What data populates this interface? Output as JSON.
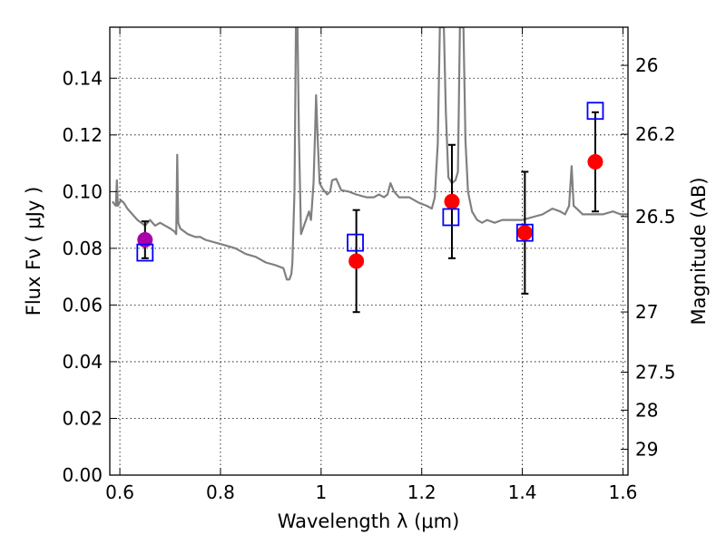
{
  "chart_data": {
    "type": "scatter",
    "xlabel": "Wavelength  λ (μm)",
    "ylabel": "Flux  Fν  ( μJy )",
    "ylabel_right": "Magnitude (AB)",
    "xlim": [
      0.58,
      1.61
    ],
    "ylim": [
      0.0,
      0.158
    ],
    "grid": true,
    "x_ticks": [
      {
        "value": 0.6,
        "label": "0.6"
      },
      {
        "value": 0.8,
        "label": "0.8"
      },
      {
        "value": 1.0,
        "label": "1"
      },
      {
        "value": 1.2,
        "label": "1.2"
      },
      {
        "value": 1.4,
        "label": "1.4"
      },
      {
        "value": 1.6,
        "label": "1.6"
      }
    ],
    "y_ticks": [
      {
        "value": 0.0,
        "label": "0.00"
      },
      {
        "value": 0.02,
        "label": "0.02"
      },
      {
        "value": 0.04,
        "label": "0.04"
      },
      {
        "value": 0.06,
        "label": "0.06"
      },
      {
        "value": 0.08,
        "label": "0.08"
      },
      {
        "value": 0.1,
        "label": "0.10"
      },
      {
        "value": 0.12,
        "label": "0.12"
      },
      {
        "value": 0.14,
        "label": "0.14"
      }
    ],
    "y_right_ticks": [
      {
        "value": 26,
        "label": "26"
      },
      {
        "value": 26.2,
        "label": "26.2"
      },
      {
        "value": 26.5,
        "label": "26.5"
      },
      {
        "value": 27,
        "label": "27"
      },
      {
        "value": 27.5,
        "label": "27.5"
      },
      {
        "value": 28,
        "label": "28"
      },
      {
        "value": 29,
        "label": "29"
      }
    ],
    "model_spectrum": {
      "color": "#808080",
      "points": [
        [
          0.585,
          0.0965
        ],
        [
          0.592,
          0.095
        ],
        [
          0.594,
          0.104
        ],
        [
          0.596,
          0.095
        ],
        [
          0.602,
          0.097
        ],
        [
          0.608,
          0.096
        ],
        [
          0.615,
          0.094
        ],
        [
          0.625,
          0.092
        ],
        [
          0.635,
          0.09
        ],
        [
          0.65,
          0.088
        ],
        [
          0.66,
          0.09
        ],
        [
          0.67,
          0.088
        ],
        [
          0.68,
          0.089
        ],
        [
          0.69,
          0.088
        ],
        [
          0.7,
          0.087
        ],
        [
          0.708,
          0.086
        ],
        [
          0.712,
          0.085
        ],
        [
          0.714,
          0.113
        ],
        [
          0.716,
          0.089
        ],
        [
          0.72,
          0.087
        ],
        [
          0.735,
          0.085
        ],
        [
          0.75,
          0.084
        ],
        [
          0.76,
          0.084
        ],
        [
          0.77,
          0.083
        ],
        [
          0.79,
          0.082
        ],
        [
          0.81,
          0.081
        ],
        [
          0.83,
          0.08
        ],
        [
          0.85,
          0.078
        ],
        [
          0.87,
          0.077
        ],
        [
          0.89,
          0.075
        ],
        [
          0.91,
          0.074
        ],
        [
          0.925,
          0.073
        ],
        [
          0.932,
          0.069
        ],
        [
          0.937,
          0.069
        ],
        [
          0.941,
          0.071
        ],
        [
          0.943,
          0.075
        ],
        [
          0.947,
          0.1
        ],
        [
          0.95,
          0.158
        ],
        [
          0.953,
          0.158
        ],
        [
          0.956,
          0.12
        ],
        [
          0.96,
          0.085
        ],
        [
          0.966,
          0.088
        ],
        [
          0.972,
          0.091
        ],
        [
          0.976,
          0.093
        ],
        [
          0.98,
          0.09
        ],
        [
          0.985,
          0.103
        ],
        [
          0.988,
          0.121
        ],
        [
          0.99,
          0.134
        ],
        [
          0.993,
          0.119
        ],
        [
          0.997,
          0.103
        ],
        [
          1.003,
          0.101
        ],
        [
          1.012,
          0.099
        ],
        [
          1.018,
          0.1
        ],
        [
          1.022,
          0.104
        ],
        [
          1.03,
          0.1045
        ],
        [
          1.04,
          0.1005
        ],
        [
          1.055,
          0.1
        ],
        [
          1.07,
          0.099
        ],
        [
          1.09,
          0.098
        ],
        [
          1.105,
          0.098
        ],
        [
          1.115,
          0.099
        ],
        [
          1.125,
          0.098
        ],
        [
          1.132,
          0.099
        ],
        [
          1.138,
          0.103
        ],
        [
          1.145,
          0.1
        ],
        [
          1.155,
          0.098
        ],
        [
          1.175,
          0.098
        ],
        [
          1.195,
          0.096
        ],
        [
          1.21,
          0.095
        ],
        [
          1.22,
          0.094
        ],
        [
          1.226,
          0.098
        ],
        [
          1.232,
          0.117
        ],
        [
          1.236,
          0.158
        ],
        [
          1.244,
          0.158
        ],
        [
          1.248,
          0.128
        ],
        [
          1.253,
          0.105
        ],
        [
          1.26,
          0.103
        ],
        [
          1.267,
          0.104
        ],
        [
          1.272,
          0.107
        ],
        [
          1.276,
          0.158
        ],
        [
          1.283,
          0.158
        ],
        [
          1.287,
          0.118
        ],
        [
          1.292,
          0.1
        ],
        [
          1.3,
          0.093
        ],
        [
          1.31,
          0.09
        ],
        [
          1.32,
          0.089
        ],
        [
          1.33,
          0.09
        ],
        [
          1.345,
          0.089
        ],
        [
          1.36,
          0.09
        ],
        [
          1.38,
          0.09
        ],
        [
          1.4,
          0.09
        ],
        [
          1.42,
          0.091
        ],
        [
          1.44,
          0.092
        ],
        [
          1.46,
          0.094
        ],
        [
          1.475,
          0.093
        ],
        [
          1.485,
          0.092
        ],
        [
          1.493,
          0.095
        ],
        [
          1.498,
          0.109
        ],
        [
          1.502,
          0.095
        ],
        [
          1.508,
          0.094
        ],
        [
          1.52,
          0.092
        ],
        [
          1.54,
          0.092
        ],
        [
          1.56,
          0.092
        ],
        [
          1.58,
          0.093
        ],
        [
          1.595,
          0.092
        ],
        [
          1.61,
          0.092
        ]
      ]
    },
    "series": [
      {
        "marker": "circle",
        "color": "#ff0000",
        "points": [
          {
            "x": 1.07,
            "y": 0.0755,
            "yerr_low": 0.0575,
            "yerr_high": 0.0935
          },
          {
            "x": 1.26,
            "y": 0.0965,
            "yerr_low": 0.0765,
            "yerr_high": 0.1165
          },
          {
            "x": 1.405,
            "y": 0.0855,
            "yerr_low": 0.064,
            "yerr_high": 0.107
          },
          {
            "x": 1.545,
            "y": 0.1105,
            "yerr_low": 0.093,
            "yerr_high": 0.128
          }
        ]
      },
      {
        "marker": "circle",
        "color": "#aa00aa",
        "points": [
          {
            "x": 0.65,
            "y": 0.083,
            "yerr_low": 0.0765,
            "yerr_high": 0.0895
          }
        ]
      },
      {
        "marker": "square",
        "color": "#0000ff",
        "points": [
          {
            "x": 0.65,
            "y": 0.0785
          },
          {
            "x": 1.068,
            "y": 0.082
          },
          {
            "x": 1.258,
            "y": 0.091
          },
          {
            "x": 1.405,
            "y": 0.0855
          },
          {
            "x": 1.545,
            "y": 0.1285
          }
        ]
      }
    ]
  }
}
